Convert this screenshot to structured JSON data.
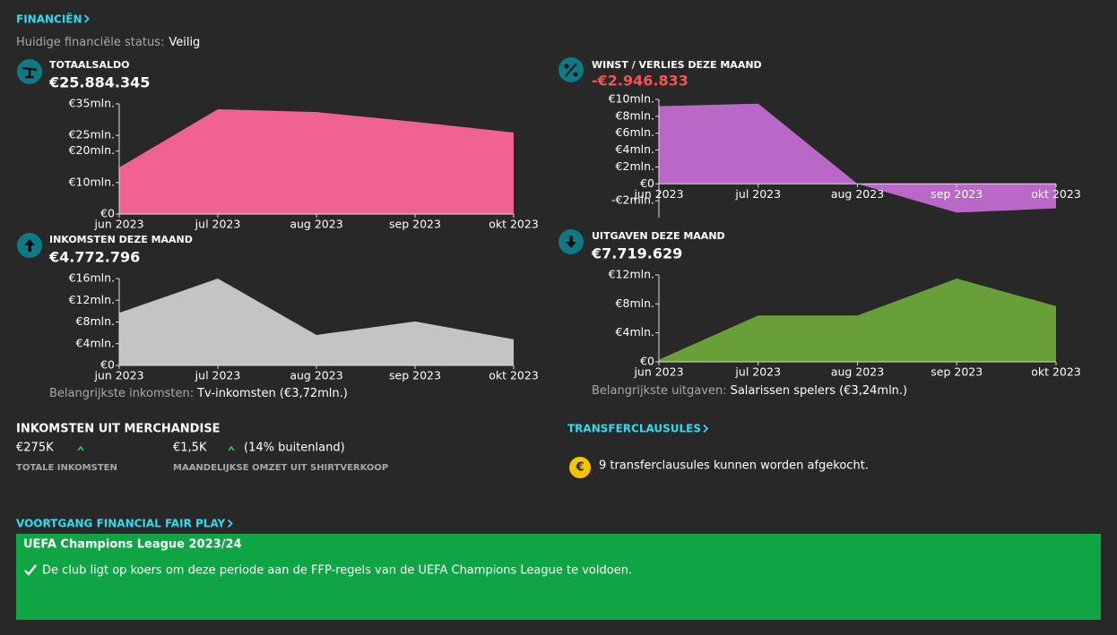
{
  "header": {
    "title": "FINANCIËN",
    "status_label": "Huidige financiële status:",
    "status_value": "Veilig"
  },
  "chart_data": [
    {
      "type": "area",
      "title": "TOTAALSALDO",
      "subtitle": "€25.884.345",
      "subtitle_color": "#ffffff",
      "color": "#f06292",
      "categories": [
        "jun 2023",
        "jul 2023",
        "aug 2023",
        "sep 2023",
        "okt 2023"
      ],
      "values": [
        14.8,
        33.3,
        32.4,
        29.3,
        25.9
      ],
      "ylim": [
        0,
        35
      ],
      "yticks": [
        {
          "value": 0,
          "label": "€0"
        },
        {
          "value": 10,
          "label": "€10mln."
        },
        {
          "value": 20,
          "label": "€20mln."
        },
        {
          "value": 25,
          "label": "€25mln."
        },
        {
          "value": 35,
          "label": "€35mln."
        }
      ]
    },
    {
      "type": "area",
      "title": "WINST / VERLIES DEZE MAAND",
      "subtitle": "-€2.946.833",
      "subtitle_color": "#f05454",
      "color": "#ba68c8",
      "categories": [
        "jun 2023",
        "jul 2023",
        "aug 2023",
        "sep 2023",
        "okt 2023"
      ],
      "values": [
        9.2,
        9.5,
        0,
        -3.4,
        -2.9
      ],
      "ylim": [
        -4,
        10
      ],
      "yticks": [
        {
          "value": -2,
          "label": "-€2mln."
        },
        {
          "value": 0,
          "label": "€0"
        },
        {
          "value": 2,
          "label": "€2mln."
        },
        {
          "value": 4,
          "label": "€4mln."
        },
        {
          "value": 6,
          "label": "€6mln."
        },
        {
          "value": 8,
          "label": "€8mln."
        },
        {
          "value": 10,
          "label": "€10mln."
        }
      ]
    },
    {
      "type": "area",
      "title": "INKOMSTEN DEZE MAAND",
      "subtitle": "€4.772.796",
      "subtitle_color": "#ffffff",
      "color": "#c4c4c4",
      "categories": [
        "jun 2023",
        "jul 2023",
        "aug 2023",
        "sep 2023",
        "okt 2023"
      ],
      "values": [
        9.7,
        16,
        5.6,
        8.1,
        4.8
      ],
      "ylim": [
        0,
        16
      ],
      "yticks": [
        {
          "value": 0,
          "label": "€0"
        },
        {
          "value": 4,
          "label": "€4mln."
        },
        {
          "value": 8,
          "label": "€8mln."
        },
        {
          "value": 12,
          "label": "€12mln."
        },
        {
          "value": 16,
          "label": "€16mln."
        }
      ],
      "note": {
        "label": "Belangrijkste inkomsten:",
        "value": "Tv-inkomsten (€3,72mln.)"
      }
    },
    {
      "type": "area",
      "title": "UITGAVEN DEZE MAAND",
      "subtitle": "€7.719.629",
      "subtitle_color": "#ffffff",
      "color": "#689f38",
      "categories": [
        "jun 2023",
        "jul 2023",
        "aug 2023",
        "sep 2023",
        "okt 2023"
      ],
      "values": [
        0.3,
        6.4,
        6.4,
        11.5,
        7.7
      ],
      "ylim": [
        0,
        12
      ],
      "yticks": [
        {
          "value": 0,
          "label": "€0"
        },
        {
          "value": 4,
          "label": "€4mln."
        },
        {
          "value": 8,
          "label": "€8mln."
        },
        {
          "value": 12,
          "label": "€12mln."
        }
      ],
      "note": {
        "label": "Belangrijkste uitgaven:",
        "value": "Salarissen spelers (€3,24mln.)"
      }
    }
  ],
  "merchandise": {
    "title": "INKOMSTEN UIT MERCHANDISE",
    "items": [
      {
        "value": "€275K",
        "label": "TOTALE INKOMSTEN"
      },
      {
        "value": "€1,5K",
        "extra": "(14% buitenland)",
        "label": "MAANDELIJKSE OMZET UIT SHIRTVERKOOP"
      }
    ]
  },
  "transfer": {
    "title": "TRANSFERCLAUSULES",
    "icon": "€",
    "text": "9 transferclausules kunnen worden afgekocht."
  },
  "ffp": {
    "title": "VOORTGANG FINANCIAL FAIR PLAY",
    "box_title": "UEFA Champions League 2023/24",
    "text": "De club ligt op koers om deze periode aan de FFP-regels van de UEFA Champions League te voldoen."
  }
}
